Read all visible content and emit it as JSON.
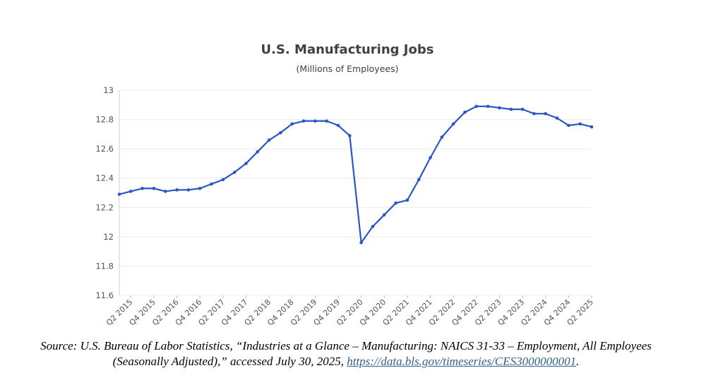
{
  "chart_data": {
    "type": "line",
    "title": "U.S. Manufacturing Jobs",
    "subtitle": "(Millions of Employees)",
    "categories": [
      null,
      "Q2 2015",
      null,
      "Q4 2015",
      null,
      "Q2 2016",
      null,
      "Q4 2016",
      null,
      "Q2 2017",
      null,
      "Q4 2017",
      null,
      "Q2 2018",
      null,
      "Q4 2018",
      null,
      "Q2 2019",
      null,
      "Q4 2019",
      null,
      "Q2 2020",
      null,
      "Q4 2020",
      null,
      "Q2 2021",
      null,
      "Q4 2021",
      null,
      "Q2 2022",
      null,
      "Q4 2022",
      null,
      "Q2 2023",
      null,
      "Q4 2023",
      null,
      "Q2 2024",
      null,
      "Q4 2024",
      null,
      "Q2 2025"
    ],
    "values": [
      12.29,
      12.31,
      12.33,
      12.33,
      12.31,
      12.32,
      12.32,
      12.33,
      12.36,
      12.39,
      12.44,
      12.5,
      12.58,
      12.66,
      12.71,
      12.77,
      12.79,
      12.79,
      12.79,
      12.76,
      12.69,
      11.96,
      12.07,
      12.15,
      12.23,
      12.25,
      12.39,
      12.54,
      12.68,
      12.77,
      12.85,
      12.89,
      12.89,
      12.88,
      12.87,
      12.87,
      12.84,
      12.84,
      12.81,
      12.76,
      12.77,
      12.75
    ],
    "color": "#2a56c6",
    "ylim": [
      11.6,
      13
    ],
    "yticks": [
      11.6,
      11.8,
      12,
      12.2,
      12.4,
      12.6,
      12.8,
      13
    ],
    "grid": true
  },
  "source": {
    "text": "Source: U.S. Bureau of Labor Statistics, “Industries at a Glance – Manufacturing: NAICS 31-33 – Employment, All Employees (Seasonally Adjusted),” accessed July 30, 2025,",
    "link": "https://data.bls.gov/timeseries/CES3000000001",
    "end": "."
  }
}
